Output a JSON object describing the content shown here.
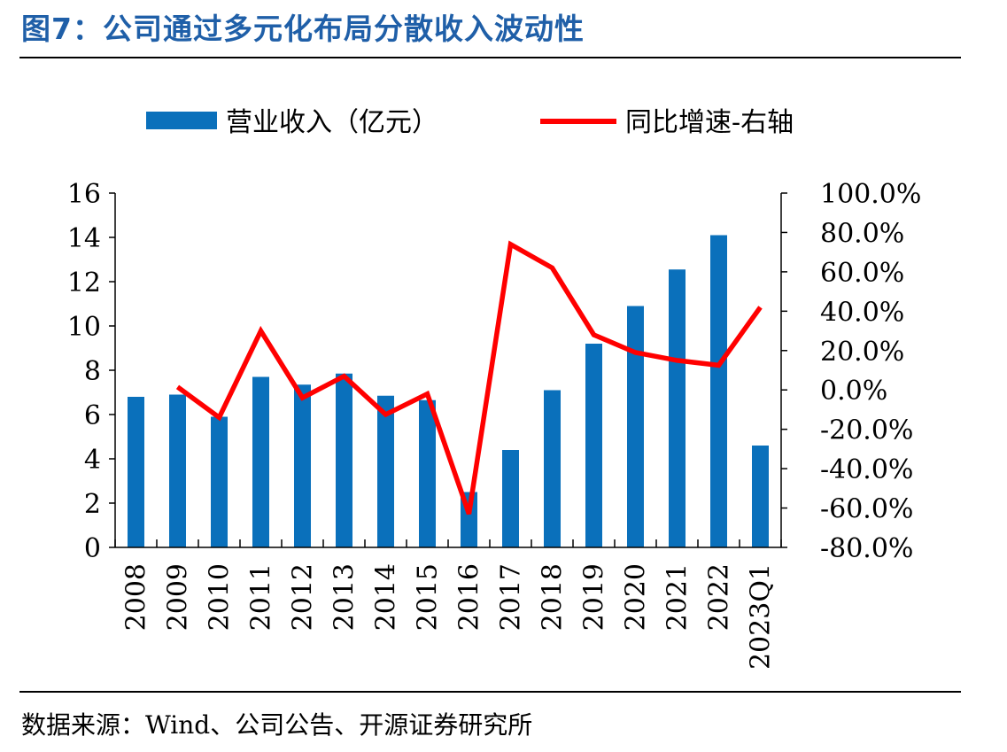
{
  "figure": {
    "title": "图7：公司通过多元化布局分散收入波动性",
    "source": "数据来源：Wind、公司公告、开源证券研究所"
  },
  "colors": {
    "bar": "#0a70bb",
    "line": "#ff0000",
    "title": "#1f5fa8"
  },
  "chart_data": {
    "type": "bar+line",
    "categories": [
      "2008",
      "2009",
      "2010",
      "2011",
      "2012",
      "2013",
      "2014",
      "2015",
      "2016",
      "2017",
      "2018",
      "2019",
      "2020",
      "2021",
      "2022",
      "2023Q1"
    ],
    "series": [
      {
        "name": "营业收入（亿元）",
        "type": "bar",
        "axis": "left",
        "values": [
          6.8,
          6.9,
          5.9,
          7.7,
          7.35,
          7.85,
          6.85,
          6.65,
          2.5,
          4.4,
          7.1,
          9.2,
          10.9,
          12.55,
          14.1,
          4.6
        ]
      },
      {
        "name": "同比增速-右轴",
        "type": "line",
        "axis": "right",
        "values": [
          null,
          1.5,
          -14.0,
          30.0,
          -4.0,
          7.0,
          -12.5,
          -2.0,
          -63.0,
          74.0,
          62.0,
          28.0,
          19.0,
          15.0,
          12.5,
          42.0
        ]
      }
    ],
    "y_left": {
      "min": 0,
      "max": 16,
      "ticks": [
        "0",
        "2",
        "4",
        "6",
        "8",
        "10",
        "12",
        "14",
        "16"
      ]
    },
    "y_right": {
      "min": -80,
      "max": 100,
      "ticks": [
        "-80.0%",
        "-60.0%",
        "-40.0%",
        "-20.0%",
        "0.0%",
        "20.0%",
        "40.0%",
        "60.0%",
        "80.0%",
        "100.0%"
      ]
    },
    "legend_position": "top",
    "grid": false
  }
}
